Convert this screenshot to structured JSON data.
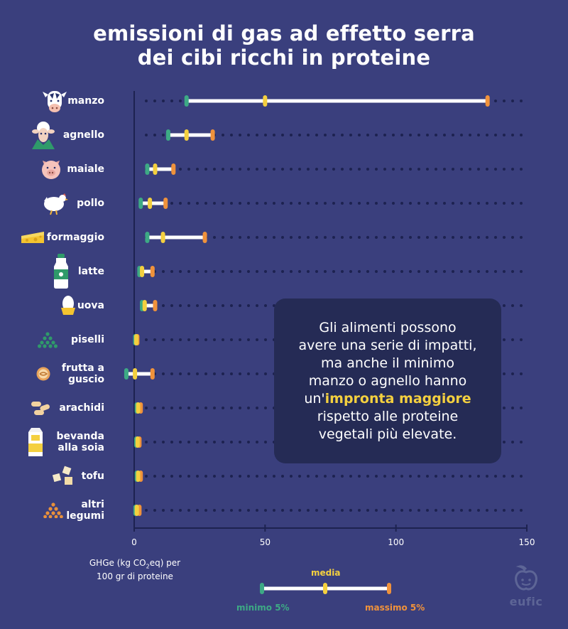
{
  "title_line1": "emissioni di gas ad effetto serra",
  "title_line2": "dei cibi ricchi in proteine",
  "callout": {
    "line1": "Gli alimenti possono",
    "line2": "avere una serie di impatti,",
    "line3": "ma anche il minimo",
    "line4": "manzo o agnello hanno",
    "line5_prefix": "un'",
    "line5_highlight": "impronta maggiore",
    "line6": "rispetto alle proteine",
    "line7": "vegetali più elevate."
  },
  "unit_label_line1": "GHGe (kg CO",
  "unit_label_sub": "2",
  "unit_label_line1_end": "eq) per",
  "unit_label_line2": "100 gr di proteine",
  "legend": {
    "mean": "media",
    "min": "minimo 5%",
    "max": "massimo 5%"
  },
  "logo": {
    "text": "eufic"
  },
  "colors": {
    "background": "#3a3f7d",
    "min": "#3daa85",
    "mean": "#f4d03f",
    "max": "#f0923b",
    "bar": "#ffffff",
    "callout": "#252b55"
  },
  "chart_data": {
    "type": "range",
    "title": "emissioni di gas ad effetto serra dei cibi ricchi in proteine",
    "xlabel": "GHGe (kg CO2eq) per 100 gr di proteine",
    "xlim": [
      0,
      150
    ],
    "xticks": [
      0,
      50,
      100,
      150
    ],
    "legend": [
      "minimo 5%",
      "media",
      "massimo 5%"
    ],
    "categories": [
      {
        "name": "manzo",
        "icon": "cow-icon",
        "min": 20,
        "mean": 50,
        "max": 135
      },
      {
        "name": "agnello",
        "icon": "sheep-icon",
        "min": 13,
        "mean": 20,
        "max": 30
      },
      {
        "name": "maiale",
        "icon": "pig-icon",
        "min": 5,
        "mean": 8,
        "max": 15
      },
      {
        "name": "pollo",
        "icon": "chicken-icon",
        "min": 2.5,
        "mean": 6,
        "max": 12
      },
      {
        "name": "formaggio",
        "icon": "cheese-icon",
        "min": 5,
        "mean": 11,
        "max": 27
      },
      {
        "name": "latte",
        "icon": "milk-bottle-icon",
        "min": 2,
        "mean": 3,
        "max": 7
      },
      {
        "name": "uova",
        "icon": "egg-icon",
        "min": 3,
        "mean": 4,
        "max": 8
      },
      {
        "name": "piselli",
        "icon": "peas-icon",
        "min": 0.4,
        "mean": 0.8,
        "max": 1.2
      },
      {
        "name": "frutta a guscio",
        "icon": "nut-icon",
        "min": -3,
        "mean": 0.3,
        "max": 7
      },
      {
        "name": "arachidi",
        "icon": "peanuts-icon",
        "min": 1,
        "mean": 1.5,
        "max": 2.5
      },
      {
        "name": "bevanda alla soia",
        "icon": "soy-carton-icon",
        "min": 0.8,
        "mean": 1.3,
        "max": 2
      },
      {
        "name": "tofu",
        "icon": "tofu-icon",
        "min": 1,
        "mean": 1.5,
        "max": 2.5
      },
      {
        "name": "altri legumi",
        "icon": "legumes-icon",
        "min": 0.5,
        "mean": 1,
        "max": 2
      }
    ]
  }
}
